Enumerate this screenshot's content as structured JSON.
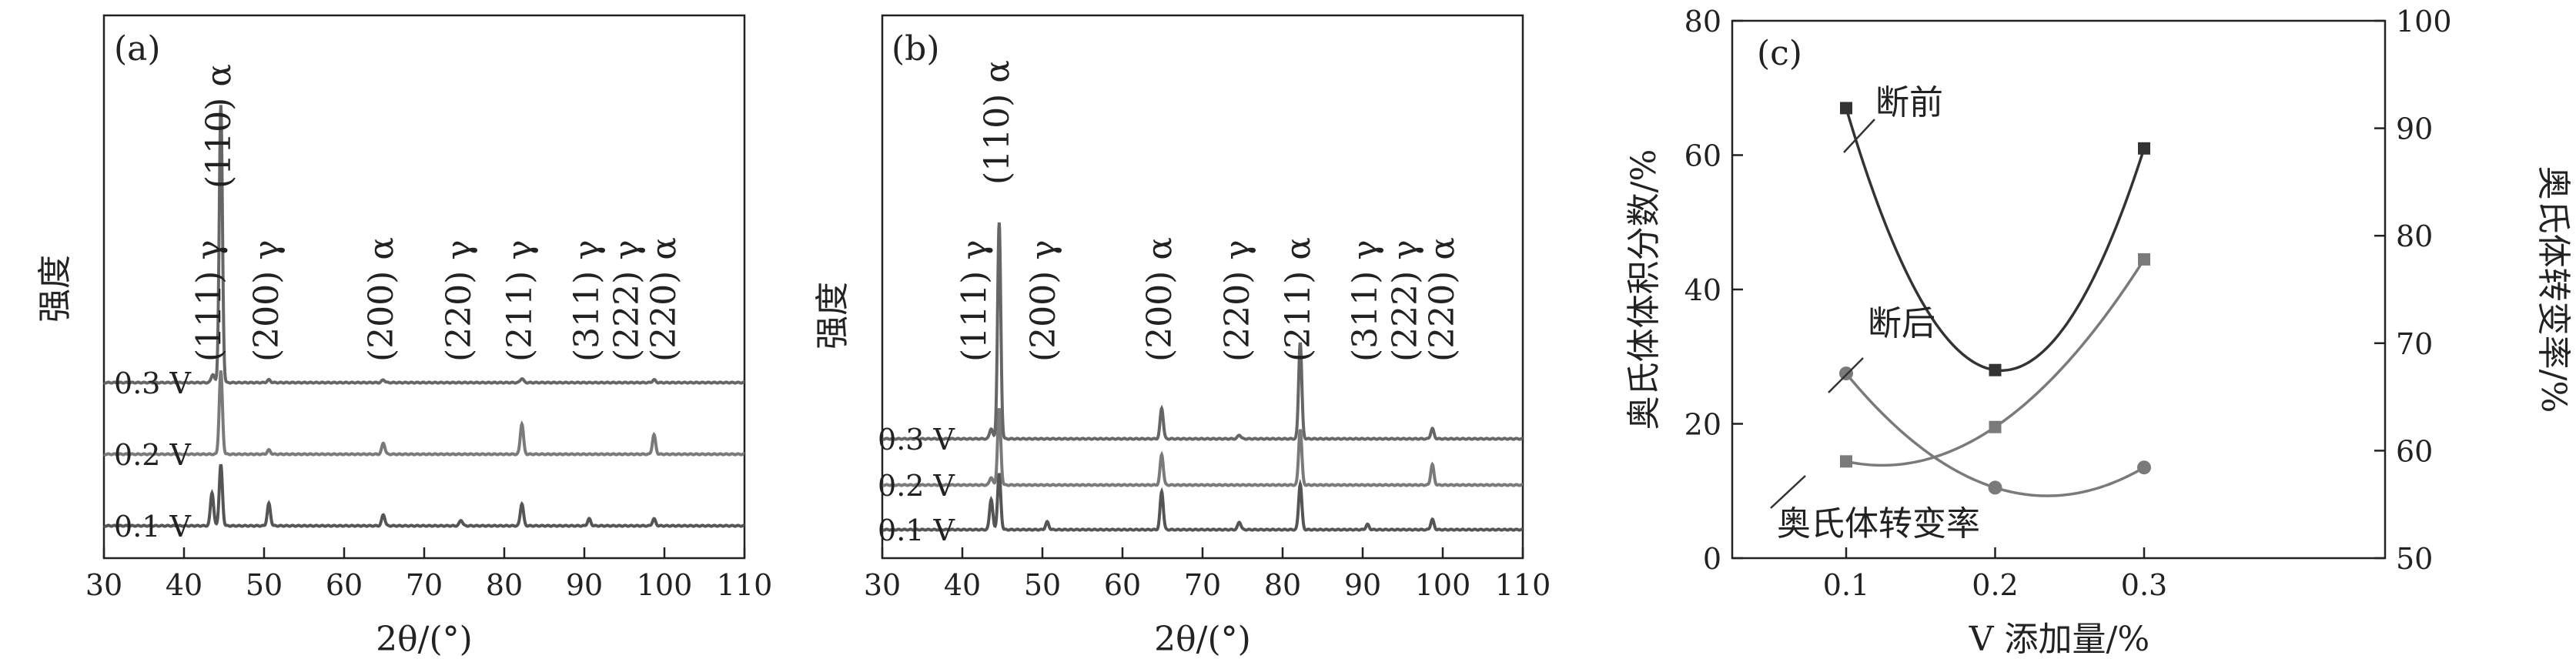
{
  "chart_data": [
    {
      "panel": "(a)",
      "type": "line",
      "xlabel": "2θ/(°)",
      "ylabel": "强度",
      "xlim": [
        30,
        110
      ],
      "xticks": [
        "30",
        "40",
        "50",
        "60",
        "70",
        "80",
        "90",
        "100",
        "110"
      ],
      "series": [
        {
          "name": "0.1 V",
          "color": "#555555",
          "peaks": [
            {
              "x": 43.5,
              "h": 0.12
            },
            {
              "x": 44.6,
              "h": 0.22
            },
            {
              "x": 50.6,
              "h": 0.08
            },
            {
              "x": 64.9,
              "h": 0.04
            },
            {
              "x": 74.6,
              "h": 0.02
            },
            {
              "x": 82.2,
              "h": 0.08
            },
            {
              "x": 90.6,
              "h": 0.025
            },
            {
              "x": 98.7,
              "h": 0.025
            }
          ]
        },
        {
          "name": "0.2 V",
          "color": "#7a7a7a",
          "peaks": [
            {
              "x": 44.6,
              "h": 0.3
            },
            {
              "x": 50.6,
              "h": 0.015
            },
            {
              "x": 64.9,
              "h": 0.04
            },
            {
              "x": 82.2,
              "h": 0.11
            },
            {
              "x": 98.7,
              "h": 0.07
            }
          ]
        },
        {
          "name": "0.3 V",
          "color": "#666666",
          "peaks": [
            {
              "x": 43.6,
              "h": 0.03
            },
            {
              "x": 44.6,
              "h": 1.0
            },
            {
              "x": 50.6,
              "h": 0.01
            },
            {
              "x": 64.9,
              "h": 0.01
            },
            {
              "x": 82.2,
              "h": 0.015
            },
            {
              "x": 98.7,
              "h": 0.01
            }
          ]
        }
      ],
      "annotations": [
        {
          "text": "(111) γ",
          "x": 43.4
        },
        {
          "text": "(110) α",
          "x": 44.6,
          "top": true
        },
        {
          "text": "(200) γ",
          "x": 50.6
        },
        {
          "text": "(200) α",
          "x": 64.9
        },
        {
          "text": "(220) γ",
          "x": 74.6
        },
        {
          "text": "(211) γ",
          "x": 82.2
        },
        {
          "text": "(311) γ",
          "x": 90.6
        },
        {
          "text": "(222) γ",
          "x": 95.6
        },
        {
          "text": "(220) α",
          "x": 100.2
        }
      ]
    },
    {
      "panel": "(b)",
      "type": "line",
      "xlabel": "2θ/(°)",
      "ylabel": "强度",
      "xlim": [
        30,
        110
      ],
      "xticks": [
        "30",
        "40",
        "50",
        "60",
        "70",
        "80",
        "90",
        "100",
        "110"
      ],
      "series": [
        {
          "name": "0.1 V",
          "color": "#555555",
          "peaks": [
            {
              "x": 43.6,
              "h": 0.12
            },
            {
              "x": 44.6,
              "h": 0.22
            },
            {
              "x": 50.6,
              "h": 0.03
            },
            {
              "x": 64.9,
              "h": 0.15
            },
            {
              "x": 74.6,
              "h": 0.03
            },
            {
              "x": 82.2,
              "h": 0.18
            },
            {
              "x": 90.6,
              "h": 0.02
            },
            {
              "x": 98.7,
              "h": 0.04
            }
          ]
        },
        {
          "name": "0.2 V",
          "color": "#7a7a7a",
          "peaks": [
            {
              "x": 43.6,
              "h": 0.03
            },
            {
              "x": 44.6,
              "h": 0.3
            },
            {
              "x": 64.9,
              "h": 0.12
            },
            {
              "x": 82.2,
              "h": 0.22
            },
            {
              "x": 98.7,
              "h": 0.08
            }
          ]
        },
        {
          "name": "0.3 V",
          "color": "#666666",
          "peaks": [
            {
              "x": 43.6,
              "h": 0.04
            },
            {
              "x": 44.6,
              "h": 0.85
            },
            {
              "x": 64.9,
              "h": 0.12
            },
            {
              "x": 74.6,
              "h": 0.015
            },
            {
              "x": 82.2,
              "h": 0.38
            },
            {
              "x": 98.7,
              "h": 0.04
            }
          ]
        }
      ],
      "annotations": [
        {
          "text": "(111) γ",
          "x": 41.8
        },
        {
          "text": "(110) α",
          "x": 44.6,
          "top": true
        },
        {
          "text": "(200) γ",
          "x": 50.4
        },
        {
          "text": "(200) α",
          "x": 64.9
        },
        {
          "text": "(220) γ",
          "x": 74.6
        },
        {
          "text": "(211) α",
          "x": 82.2
        },
        {
          "text": "(311) γ",
          "x": 90.6
        },
        {
          "text": "(222) γ",
          "x": 95.6
        },
        {
          "text": "(220) α",
          "x": 100.2
        }
      ]
    },
    {
      "panel": "(c)",
      "type": "line",
      "xlabel": "V 添加量/%",
      "ylabel": "奥氏体体积分数/%",
      "ylabel_right": "奥氏体转变率/%",
      "x": [
        0.1,
        0.2,
        0.3
      ],
      "xticks": [
        "0.1",
        "0.2",
        "0.3"
      ],
      "ylim": [
        0,
        80
      ],
      "yticks": [
        "0",
        "20",
        "40",
        "60",
        "80"
      ],
      "ylim_right": [
        50,
        100
      ],
      "yticks_right": [
        "50",
        "60",
        "70",
        "80",
        "90",
        "100"
      ],
      "series": [
        {
          "name": "断前",
          "axis": "left",
          "marker": "square",
          "color": "#333333",
          "values": [
            67,
            28,
            61
          ]
        },
        {
          "name": "断后",
          "axis": "left",
          "marker": "circle",
          "color": "#7a7a7a",
          "values": [
            27.5,
            10.5,
            13.5
          ]
        },
        {
          "name": "奥氏体转变率",
          "axis": "right",
          "marker": "square",
          "color": "#7a7a7a",
          "values": [
            59,
            62.2,
            77.8
          ]
        }
      ]
    }
  ]
}
